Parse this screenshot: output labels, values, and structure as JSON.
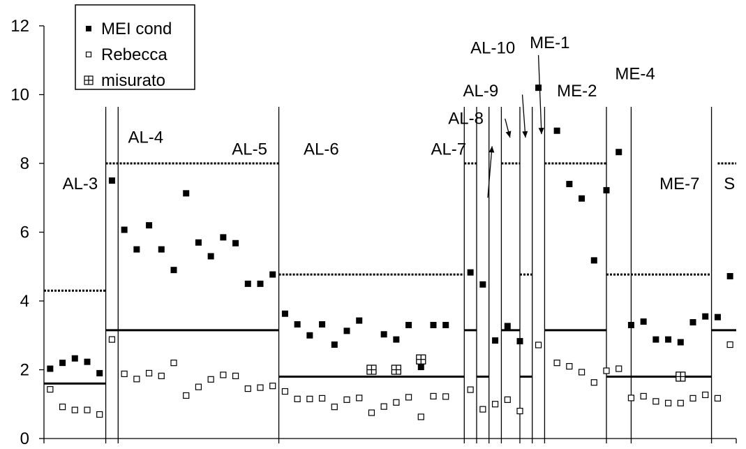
{
  "chart_data": {
    "type": "scatter",
    "y_axis": {
      "min": 0,
      "max": 12,
      "ticks": [
        "0",
        "2",
        "4",
        "6",
        "8",
        "10",
        "12"
      ]
    },
    "legend": {
      "placement": "top-left",
      "entries": [
        {
          "label": "MEI cond",
          "marker": "filled-square"
        },
        {
          "label": "Rebecca",
          "marker": "open-square"
        },
        {
          "label": "misurato",
          "marker": "crossed-square"
        }
      ]
    },
    "x_range": [
      0,
      56
    ],
    "boundaries": [
      5,
      6,
      19,
      34,
      35,
      36,
      37,
      38.5,
      39.5,
      40.5,
      45.5,
      47.5,
      54
    ],
    "regions": [
      {
        "label": "AL-3",
        "label_x": 1.5,
        "label_y": 7.25
      },
      {
        "label": "AL-4",
        "label_x": 6.8,
        "label_y": 8.6
      },
      {
        "label": "AL-5",
        "label_x": 15.2,
        "label_y": 8.25
      },
      {
        "label": "AL-6",
        "label_x": 21,
        "label_y": 8.25
      },
      {
        "label": "AL-7",
        "label_x": 31.3,
        "label_y": 8.25
      },
      {
        "label": "AL-8",
        "label_x": 32.7,
        "label_y": 9.15
      },
      {
        "label": "AL-9",
        "label_x": 33.9,
        "label_y": 9.95
      },
      {
        "label": "AL-10",
        "label_x": 34.5,
        "label_y": 11.2
      },
      {
        "label": "ME-1",
        "label_x": 39.3,
        "label_y": 11.35
      },
      {
        "label": "ME-2",
        "label_x": 41.5,
        "label_y": 9.95
      },
      {
        "label": "ME-4",
        "label_x": 46.2,
        "label_y": 10.45
      },
      {
        "label": "ME-7",
        "label_x": 49.8,
        "label_y": 7.25
      },
      {
        "label": "S",
        "label_x": 55,
        "label_y": 7.25
      }
    ],
    "arrows": [
      {
        "x1": 35.9,
        "y1": 7.0,
        "x2": 36.25,
        "y2": 8.5
      },
      {
        "x1": 37.3,
        "y1": 9.3,
        "x2": 37.7,
        "y2": 8.75
      },
      {
        "x1": 38.7,
        "y1": 10.0,
        "x2": 38.95,
        "y2": 8.75
      },
      {
        "x1": 40.0,
        "y1": 11.15,
        "x2": 40.25,
        "y2": 8.85
      }
    ],
    "solid_levels": [
      {
        "x0": 0,
        "x1": 5,
        "y": 1.6
      },
      {
        "x0": 5,
        "x1": 19,
        "y": 3.15
      },
      {
        "x0": 19,
        "x1": 34,
        "y": 1.8
      },
      {
        "x0": 34,
        "x1": 35,
        "y": 3.15
      },
      {
        "x0": 35,
        "x1": 36,
        "y": 1.8
      },
      {
        "x0": 37,
        "x1": 38.5,
        "y": 3.15
      },
      {
        "x0": 38.5,
        "x1": 39.5,
        "y": 1.8
      },
      {
        "x0": 40.5,
        "x1": 45.5,
        "y": 3.15
      },
      {
        "x0": 45.5,
        "x1": 54,
        "y": 1.8
      },
      {
        "x0": 54,
        "x1": 56,
        "y": 3.15
      }
    ],
    "dotted_levels": [
      {
        "x0": 0,
        "x1": 5,
        "y": 4.3
      },
      {
        "x0": 5,
        "x1": 19,
        "y": 8.0
      },
      {
        "x0": 19,
        "x1": 34,
        "y": 4.77
      },
      {
        "x0": 34,
        "x1": 35,
        "y": 8.0
      },
      {
        "x0": 37,
        "x1": 38.5,
        "y": 8.0
      },
      {
        "x0": 38.5,
        "x1": 39.5,
        "y": 4.77
      },
      {
        "x0": 40.5,
        "x1": 45.5,
        "y": 8.0
      },
      {
        "x0": 45.5,
        "x1": 54,
        "y": 4.77
      },
      {
        "x0": 54.5,
        "x1": 56,
        "y": 8.0
      }
    ],
    "series": [
      {
        "name": "MEI cond",
        "points": [
          [
            0.5,
            2.03
          ],
          [
            1.5,
            2.2
          ],
          [
            2.5,
            2.33
          ],
          [
            3.5,
            2.23
          ],
          [
            4.5,
            1.9
          ],
          [
            5.5,
            7.5
          ],
          [
            6.5,
            6.07
          ],
          [
            7.5,
            5.5
          ],
          [
            8.5,
            6.2
          ],
          [
            9.5,
            5.5
          ],
          [
            10.5,
            4.9
          ],
          [
            11.5,
            7.13
          ],
          [
            12.5,
            5.7
          ],
          [
            13.5,
            5.3
          ],
          [
            14.5,
            5.85
          ],
          [
            15.5,
            5.68
          ],
          [
            16.5,
            4.5
          ],
          [
            17.5,
            4.5
          ],
          [
            18.5,
            4.77
          ],
          [
            19.5,
            3.63
          ],
          [
            20.5,
            3.32
          ],
          [
            21.5,
            3.0
          ],
          [
            22.5,
            3.32
          ],
          [
            23.5,
            2.73
          ],
          [
            24.5,
            3.13
          ],
          [
            25.5,
            3.43
          ],
          [
            26.5,
            2.03
          ],
          [
            27.5,
            3.03
          ],
          [
            28.5,
            2.88
          ],
          [
            29.5,
            3.3
          ],
          [
            30.5,
            2.08
          ],
          [
            31.5,
            3.3
          ],
          [
            32.5,
            3.3
          ],
          [
            34.5,
            4.83
          ],
          [
            35.5,
            4.48
          ],
          [
            36.5,
            2.85
          ],
          [
            37.5,
            3.27
          ],
          [
            38.5,
            2.83
          ],
          [
            40.0,
            10.2
          ],
          [
            41.5,
            8.95
          ],
          [
            42.5,
            7.4
          ],
          [
            43.5,
            6.98
          ],
          [
            44.5,
            5.18
          ],
          [
            45.5,
            7.22
          ],
          [
            46.5,
            8.33
          ],
          [
            47.5,
            3.3
          ],
          [
            48.5,
            3.4
          ],
          [
            49.5,
            2.88
          ],
          [
            50.5,
            2.88
          ],
          [
            51.5,
            2.8
          ],
          [
            52.5,
            3.38
          ],
          [
            53.5,
            3.55
          ],
          [
            54.5,
            3.53
          ],
          [
            55.5,
            4.72
          ]
        ]
      },
      {
        "name": "Rebecca",
        "points": [
          [
            0.5,
            1.43
          ],
          [
            1.5,
            0.92
          ],
          [
            2.5,
            0.83
          ],
          [
            3.5,
            0.83
          ],
          [
            4.5,
            0.7
          ],
          [
            5.5,
            2.88
          ],
          [
            6.5,
            1.88
          ],
          [
            7.5,
            1.73
          ],
          [
            8.5,
            1.9
          ],
          [
            9.5,
            1.82
          ],
          [
            10.5,
            2.2
          ],
          [
            11.5,
            1.25
          ],
          [
            12.5,
            1.5
          ],
          [
            13.5,
            1.72
          ],
          [
            14.5,
            1.85
          ],
          [
            15.5,
            1.82
          ],
          [
            16.5,
            1.45
          ],
          [
            17.5,
            1.48
          ],
          [
            18.5,
            1.53
          ],
          [
            19.5,
            1.37
          ],
          [
            20.5,
            1.15
          ],
          [
            21.5,
            1.15
          ],
          [
            22.5,
            1.17
          ],
          [
            23.5,
            0.92
          ],
          [
            24.5,
            1.13
          ],
          [
            25.5,
            1.18
          ],
          [
            26.5,
            0.75
          ],
          [
            27.5,
            0.93
          ],
          [
            28.5,
            1.05
          ],
          [
            29.5,
            1.2
          ],
          [
            30.5,
            0.63
          ],
          [
            31.5,
            1.23
          ],
          [
            32.5,
            1.22
          ],
          [
            34.5,
            1.42
          ],
          [
            35.5,
            0.85
          ],
          [
            36.5,
            1.0
          ],
          [
            37.5,
            1.13
          ],
          [
            38.5,
            0.8
          ],
          [
            40.0,
            2.72
          ],
          [
            41.5,
            2.2
          ],
          [
            42.5,
            2.1
          ],
          [
            43.5,
            1.93
          ],
          [
            44.5,
            1.63
          ],
          [
            45.5,
            1.97
          ],
          [
            46.5,
            2.03
          ],
          [
            47.5,
            1.18
          ],
          [
            48.5,
            1.23
          ],
          [
            49.5,
            1.08
          ],
          [
            50.5,
            1.03
          ],
          [
            51.5,
            1.03
          ],
          [
            52.5,
            1.17
          ],
          [
            53.5,
            1.27
          ],
          [
            54.5,
            1.17
          ],
          [
            55.5,
            2.73
          ]
        ]
      },
      {
        "name": "misurato",
        "points": [
          [
            26.5,
            2.0
          ],
          [
            28.5,
            2.0
          ],
          [
            30.5,
            2.3
          ],
          [
            51.5,
            1.8
          ]
        ]
      }
    ]
  }
}
